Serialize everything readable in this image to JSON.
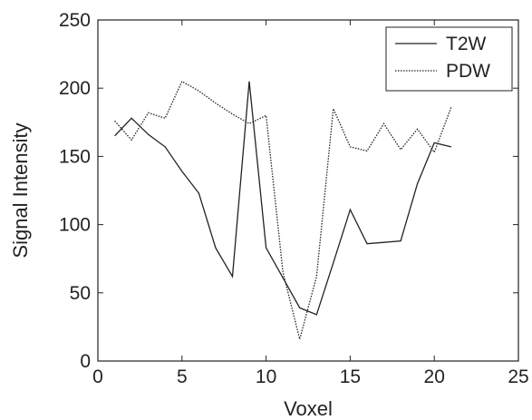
{
  "chart_data": {
    "type": "line",
    "xlabel": "Voxel",
    "ylabel": "Signal Intensity",
    "xlim": [
      0,
      25
    ],
    "ylim": [
      0,
      250
    ],
    "xticks": [
      0,
      5,
      10,
      15,
      20,
      25
    ],
    "yticks": [
      0,
      50,
      100,
      150,
      200,
      250
    ],
    "grid": false,
    "legend_position": "top-right",
    "series": [
      {
        "name": "T2W",
        "style": "solid",
        "color": "#222222",
        "x": [
          1,
          2,
          3,
          4,
          5,
          6,
          7,
          8,
          9,
          10,
          11,
          12,
          13,
          14,
          15,
          16,
          17,
          18,
          19,
          20,
          21
        ],
        "y": [
          165,
          178,
          166,
          157,
          139,
          123,
          83,
          62,
          205,
          83,
          61,
          39,
          34,
          72,
          111,
          86,
          87,
          88,
          130,
          160,
          157
        ]
      },
      {
        "name": "PDW",
        "style": "dotted",
        "color": "#222222",
        "x": [
          1,
          2,
          3,
          4,
          5,
          6,
          7,
          8,
          9,
          10,
          11,
          12,
          13,
          14,
          15,
          16,
          17,
          18,
          19,
          20,
          21
        ],
        "y": [
          176,
          162,
          182,
          178,
          205,
          198,
          189,
          181,
          174,
          180,
          65,
          16,
          62,
          185,
          157,
          154,
          174,
          155,
          170,
          153,
          186
        ]
      }
    ]
  }
}
